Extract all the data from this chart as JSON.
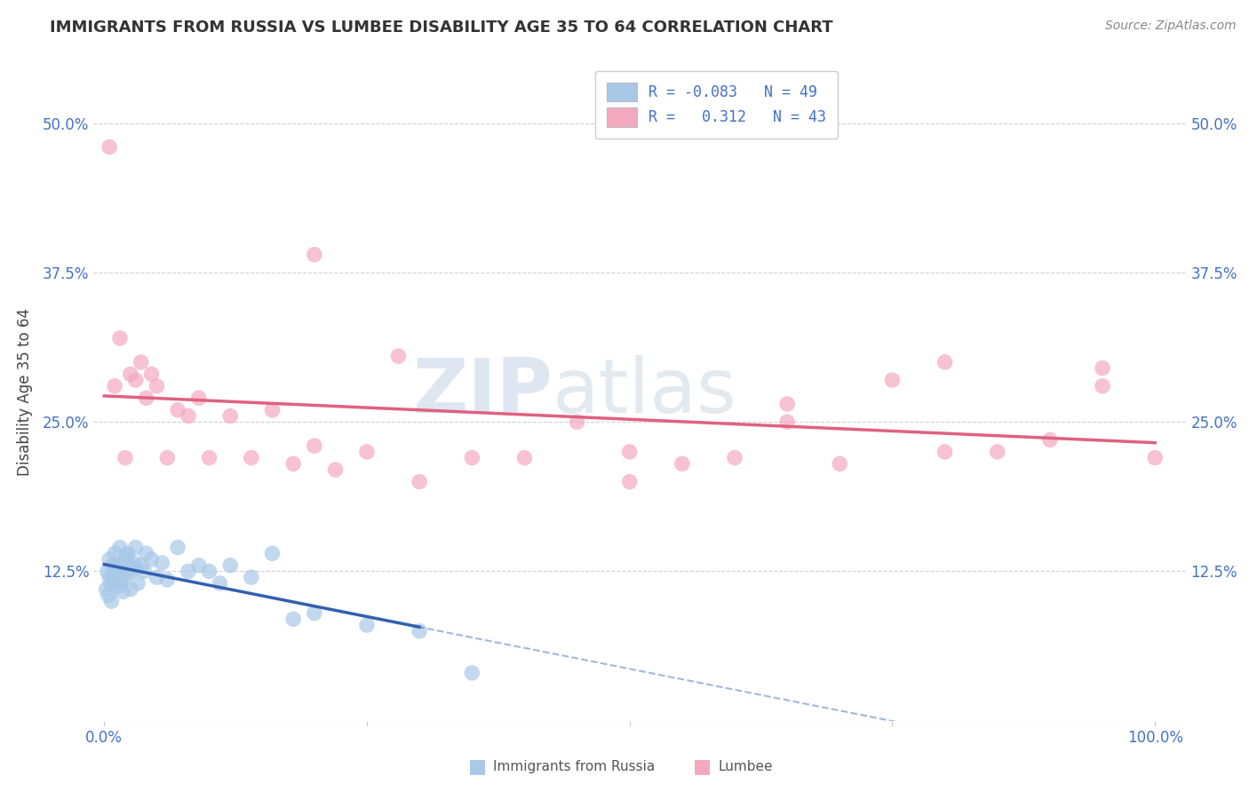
{
  "title": "IMMIGRANTS FROM RUSSIA VS LUMBEE DISABILITY AGE 35 TO 64 CORRELATION CHART",
  "source": "Source: ZipAtlas.com",
  "ylabel": "Disability Age 35 to 64",
  "legend_blue_r": "-0.083",
  "legend_blue_n": "49",
  "legend_pink_r": "0.312",
  "legend_pink_n": "43",
  "legend_blue_label": "Immigrants from Russia",
  "legend_pink_label": "Lumbee",
  "blue_color": "#a8c8e8",
  "pink_color": "#f4a8c0",
  "blue_line_color": "#3060b0",
  "pink_line_color": "#e06080",
  "grid_color": "#d0d0d0",
  "blue_x": [
    0.2,
    0.3,
    0.4,
    0.5,
    0.5,
    0.6,
    0.7,
    0.8,
    0.9,
    1.0,
    1.0,
    1.1,
    1.2,
    1.3,
    1.5,
    1.5,
    1.6,
    1.7,
    1.8,
    2.0,
    2.0,
    2.2,
    2.2,
    2.5,
    2.5,
    2.8,
    3.0,
    3.0,
    3.2,
    3.5,
    3.8,
    4.0,
    4.5,
    5.0,
    5.5,
    6.0,
    7.0,
    8.0,
    9.0,
    10.0,
    11.0,
    12.0,
    14.0,
    16.0,
    18.0,
    20.0,
    25.0,
    30.0,
    35.0
  ],
  "blue_y": [
    11.0,
    12.5,
    10.5,
    12.0,
    13.5,
    11.5,
    10.0,
    13.0,
    11.8,
    14.0,
    12.5,
    13.0,
    11.2,
    12.8,
    14.5,
    13.0,
    11.5,
    12.0,
    10.8,
    13.5,
    12.2,
    14.0,
    13.8,
    12.5,
    11.0,
    13.2,
    14.5,
    12.8,
    11.5,
    13.0,
    12.5,
    14.0,
    13.5,
    12.0,
    13.2,
    11.8,
    14.5,
    12.5,
    13.0,
    12.5,
    11.5,
    13.0,
    12.0,
    14.0,
    8.5,
    9.0,
    8.0,
    7.5,
    4.0
  ],
  "pink_x": [
    0.5,
    1.0,
    1.5,
    2.0,
    2.5,
    3.0,
    3.5,
    4.0,
    4.5,
    5.0,
    6.0,
    7.0,
    8.0,
    9.0,
    10.0,
    12.0,
    14.0,
    16.0,
    18.0,
    20.0,
    22.0,
    25.0,
    30.0,
    35.0,
    40.0,
    45.0,
    50.0,
    55.0,
    60.0,
    65.0,
    70.0,
    75.0,
    80.0,
    85.0,
    90.0,
    95.0,
    100.0,
    20.0,
    28.0,
    50.0,
    65.0,
    80.0,
    95.0
  ],
  "pink_y": [
    48.0,
    28.0,
    32.0,
    22.0,
    29.0,
    28.5,
    30.0,
    27.0,
    29.0,
    28.0,
    22.0,
    26.0,
    25.5,
    27.0,
    22.0,
    25.5,
    22.0,
    26.0,
    21.5,
    23.0,
    21.0,
    22.5,
    20.0,
    22.0,
    22.0,
    25.0,
    20.0,
    21.5,
    22.0,
    25.0,
    21.5,
    28.5,
    30.0,
    22.5,
    23.5,
    28.0,
    22.0,
    39.0,
    30.5,
    22.5,
    26.5,
    22.5,
    29.5
  ]
}
